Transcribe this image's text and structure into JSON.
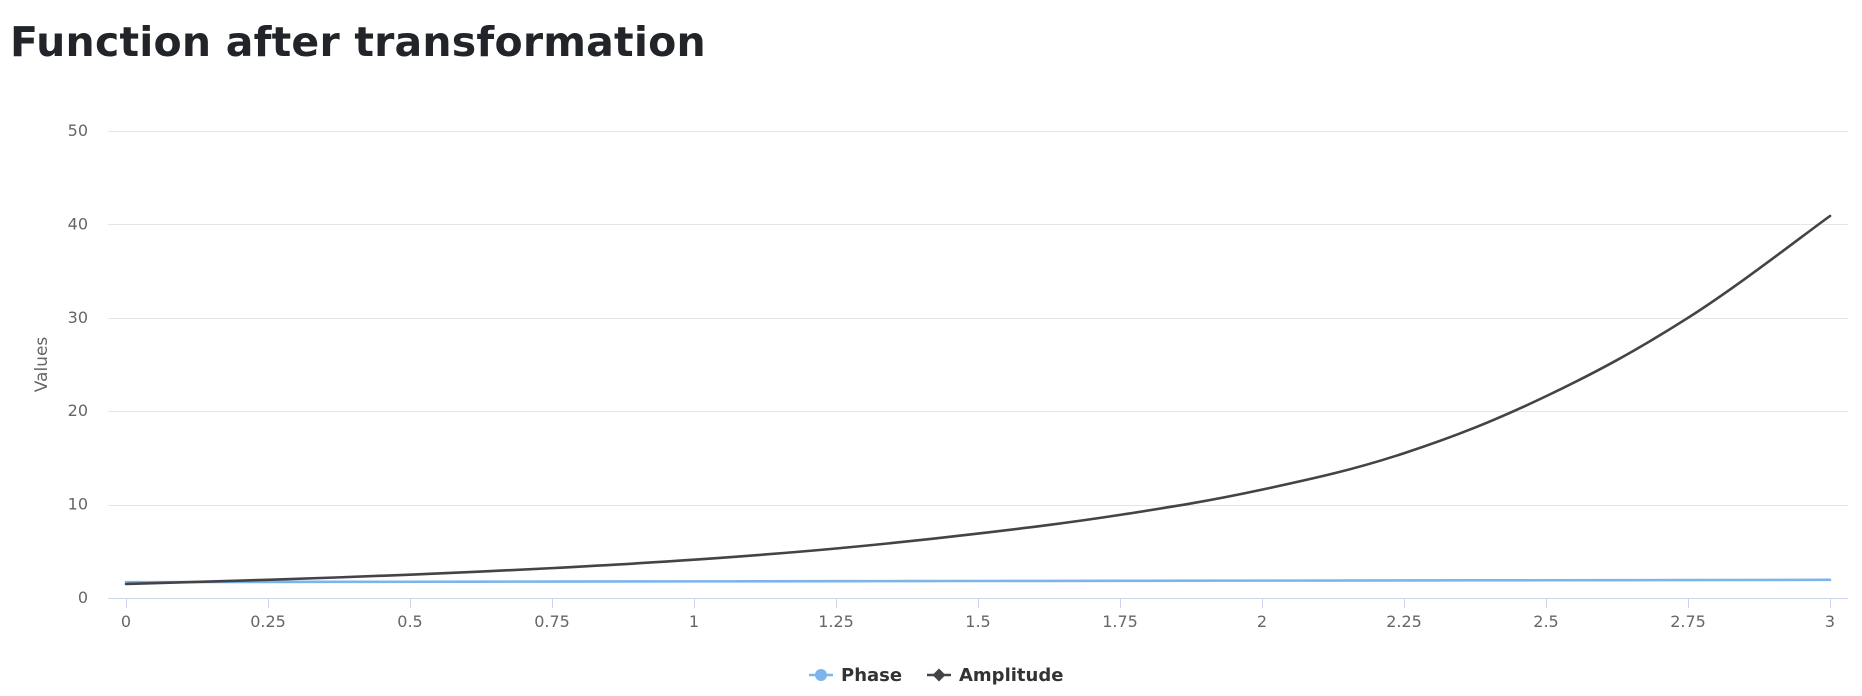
{
  "page": {
    "title": "Function after transformation"
  },
  "chart_data": {
    "type": "line",
    "title": "Function after transformation",
    "xlabel": "",
    "ylabel": "Values",
    "xlim": [
      0,
      3
    ],
    "ylim": [
      0,
      50
    ],
    "x_ticks": [
      "0",
      "0.25",
      "0.5",
      "0.75",
      "1",
      "1.25",
      "1.5",
      "1.75",
      "2",
      "2.25",
      "2.5",
      "2.75",
      "3"
    ],
    "x_tick_values": [
      0,
      0.25,
      0.5,
      0.75,
      1,
      1.25,
      1.5,
      1.75,
      2,
      2.25,
      2.5,
      2.75,
      3
    ],
    "y_ticks": [
      "0",
      "10",
      "20",
      "30",
      "40",
      "50"
    ],
    "y_tick_values": [
      0,
      10,
      20,
      30,
      40,
      50
    ],
    "grid": "horizontal",
    "legend_position": "bottom-center",
    "series": [
      {
        "name": "Phase",
        "color": "#7cb5ec",
        "marker": "circle",
        "x": [
          0,
          0.25,
          0.5,
          0.75,
          1,
          1.25,
          1.5,
          1.75,
          2,
          2.25,
          2.5,
          2.75,
          3
        ],
        "values": [
          1.7,
          1.72,
          1.74,
          1.76,
          1.78,
          1.8,
          1.82,
          1.84,
          1.86,
          1.88,
          1.9,
          1.92,
          1.95
        ]
      },
      {
        "name": "Amplitude",
        "color": "#434348",
        "marker": "diamond",
        "x": [
          0,
          0.25,
          0.5,
          0.75,
          1,
          1.25,
          1.5,
          1.75,
          2,
          2.25,
          2.5,
          2.75,
          3
        ],
        "values": [
          1.5,
          1.95,
          2.5,
          3.2,
          4.1,
          5.3,
          6.9,
          8.9,
          11.6,
          15.5,
          21.6,
          30.0,
          40.9
        ]
      }
    ]
  }
}
